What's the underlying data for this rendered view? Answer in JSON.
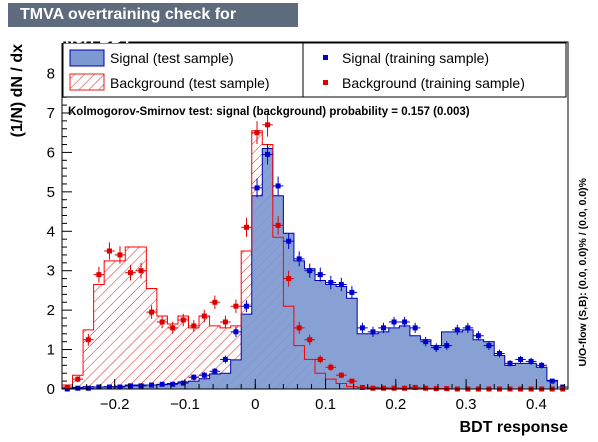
{
  "chart_data": {
    "type": "histogram",
    "title": "TMVA overtraining check for classifier: BDT",
    "xlabel": "BDT response",
    "ylabel": "(1/N) dN / dx",
    "xlim": [
      -0.275,
      0.445
    ],
    "ylim": [
      0,
      8.8
    ],
    "x_ticks": [
      -0.2,
      -0.1,
      0,
      0.1,
      0.2,
      0.3,
      0.4
    ],
    "x_tick_labels": [
      "−0.2",
      "−0.1",
      "0",
      "0.1",
      "0.2",
      "0.3",
      "0.4"
    ],
    "y_ticks": [
      0,
      1,
      2,
      3,
      4,
      5,
      6,
      7,
      8
    ],
    "y_tick_labels": [
      "0",
      "1",
      "2",
      "3",
      "4",
      "5",
      "6",
      "7",
      "8"
    ],
    "annotation": "Kolmogorov-Smirnov test: signal (background) probability = 0.157 (0.003)",
    "side_label": "U/O-flow (S,B): (0.0, 0.0)% / (0.0, 0.0)%",
    "bins_low": [
      -0.275,
      -0.26,
      -0.245,
      -0.23,
      -0.215,
      -0.2,
      -0.185,
      -0.17,
      -0.155,
      -0.14,
      -0.125,
      -0.11,
      -0.095,
      -0.08,
      -0.065,
      -0.05,
      -0.035,
      -0.02,
      -0.005,
      0.01,
      0.025,
      0.04,
      0.055,
      0.07,
      0.085,
      0.1,
      0.115,
      0.13,
      0.145,
      0.16,
      0.175,
      0.19,
      0.205,
      0.22,
      0.235,
      0.25,
      0.265,
      0.28,
      0.295,
      0.31,
      0.325,
      0.34,
      0.355,
      0.37,
      0.385,
      0.4,
      0.415,
      0.43
    ],
    "bin_width": 0.015,
    "series": [
      {
        "name": "Signal (test sample)",
        "style": "filled",
        "color": "#7d99d1",
        "line_color": "#0000aa",
        "values": [
          0.02,
          0.04,
          0.06,
          0.05,
          0.06,
          0.07,
          0.1,
          0.1,
          0.1,
          0.11,
          0.14,
          0.18,
          0.2,
          0.26,
          0.38,
          0.4,
          0.74,
          1.9,
          4.9,
          6.1,
          4.9,
          3.95,
          3.25,
          3.05,
          2.75,
          2.65,
          2.6,
          2.3,
          1.4,
          1.4,
          1.45,
          1.55,
          1.6,
          1.35,
          1.25,
          1.1,
          1.45,
          1.45,
          1.5,
          1.25,
          1.2,
          0.85,
          0.6,
          0.65,
          0.65,
          0.55,
          0.22,
          0.0
        ]
      },
      {
        "name": "Background (test sample)",
        "style": "hatched",
        "color": "#ff0000",
        "values": [
          0.1,
          0.35,
          1.5,
          2.65,
          3.25,
          3.25,
          3.6,
          3.6,
          2.55,
          1.85,
          1.65,
          1.85,
          1.55,
          1.85,
          1.6,
          1.55,
          1.6,
          3.5,
          6.55,
          6.2,
          3.85,
          2.1,
          1.1,
          0.75,
          0.4,
          0.25,
          0.14,
          0.06,
          0.04,
          0.04,
          0.03,
          0.02,
          0.02,
          0.01,
          0.01,
          0.0,
          0.0,
          0.0,
          0.0,
          0.0,
          0.0,
          0.0,
          0.0,
          0.0,
          0.0,
          0.0,
          0.0,
          0.0
        ]
      },
      {
        "name": "Signal (training sample)",
        "style": "points",
        "color": "#0000cc",
        "values": [
          0.0,
          0.02,
          0.02,
          0.05,
          0.05,
          0.05,
          0.08,
          0.08,
          0.1,
          0.12,
          0.12,
          0.15,
          0.3,
          0.35,
          0.45,
          0.75,
          1.45,
          2.1,
          5.1,
          5.95,
          5.15,
          3.75,
          3.3,
          3.0,
          2.9,
          2.7,
          2.65,
          2.45,
          1.55,
          1.45,
          1.55,
          1.7,
          1.7,
          1.55,
          1.2,
          1.05,
          1.1,
          1.5,
          1.55,
          1.35,
          1.1,
          0.9,
          0.65,
          0.75,
          0.7,
          0.6,
          0.2,
          0.05
        ],
        "errors": [
          0.02,
          0.03,
          0.03,
          0.03,
          0.03,
          0.03,
          0.04,
          0.04,
          0.04,
          0.05,
          0.05,
          0.05,
          0.07,
          0.08,
          0.08,
          0.1,
          0.13,
          0.15,
          0.24,
          0.26,
          0.24,
          0.2,
          0.19,
          0.18,
          0.18,
          0.17,
          0.17,
          0.16,
          0.13,
          0.13,
          0.13,
          0.13,
          0.13,
          0.13,
          0.12,
          0.11,
          0.11,
          0.13,
          0.13,
          0.12,
          0.11,
          0.1,
          0.08,
          0.09,
          0.09,
          0.08,
          0.05,
          0.03
        ]
      },
      {
        "name": "Background (training sample)",
        "style": "points",
        "color": "#dd0000",
        "values": [
          0.05,
          0.25,
          1.25,
          2.9,
          3.5,
          3.4,
          2.95,
          3.0,
          1.95,
          1.7,
          1.55,
          1.75,
          1.6,
          1.85,
          2.2,
          1.7,
          2.1,
          4.1,
          6.5,
          6.7,
          4.15,
          2.8,
          1.55,
          1.25,
          0.75,
          0.55,
          0.35,
          0.2,
          0.04,
          0.02,
          0.02,
          0.02,
          0.02,
          0.04,
          0.02,
          0.01,
          0.01,
          0.0,
          0.0,
          0.0,
          0.0,
          0.0,
          0.0,
          0.0,
          0.0,
          0.0,
          0.0,
          0.0
        ],
        "errors": [
          0.03,
          0.07,
          0.15,
          0.2,
          0.22,
          0.22,
          0.2,
          0.2,
          0.17,
          0.16,
          0.15,
          0.16,
          0.15,
          0.16,
          0.17,
          0.16,
          0.17,
          0.24,
          0.29,
          0.3,
          0.24,
          0.2,
          0.15,
          0.13,
          0.1,
          0.09,
          0.07,
          0.05,
          0.03,
          0.02,
          0.02,
          0.02,
          0.02,
          0.03,
          0.02,
          0.02,
          0.02,
          0.0,
          0.0,
          0.0,
          0.0,
          0.0,
          0.0,
          0.0,
          0.0,
          0.0,
          0.0,
          0.0
        ]
      }
    ],
    "legend": {
      "placement": "top",
      "entries": [
        {
          "label": "Signal (test sample)",
          "series": 0
        },
        {
          "label": "Background (test sample)",
          "series": 1
        },
        {
          "label": "Signal (training sample)",
          "series": 2
        },
        {
          "label": "Background (training sample)",
          "series": 3
        }
      ]
    }
  }
}
